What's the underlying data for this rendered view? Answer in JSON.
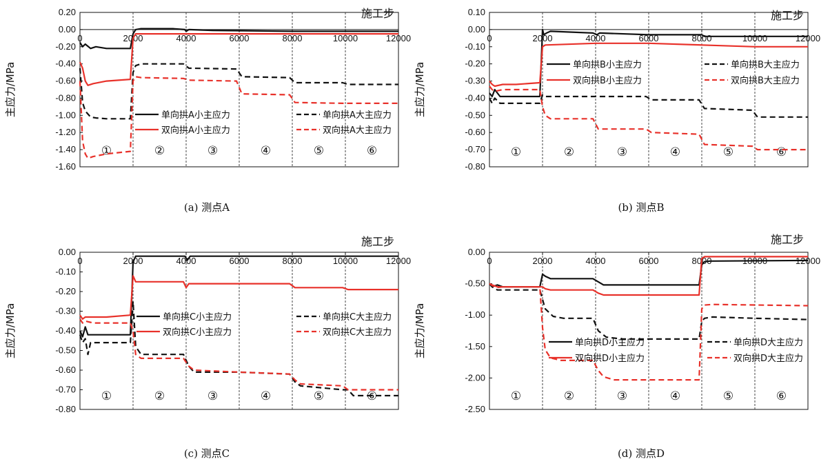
{
  "shared": {
    "xlabel": "施工步",
    "ylabel": "主应力/MPa",
    "colors": {
      "black": "#111111",
      "red": "#e8312a"
    },
    "stages": [
      "①",
      "②",
      "③",
      "④",
      "⑤",
      "⑥"
    ]
  },
  "chart_data": [
    {
      "type": "line",
      "title": "(a) 测点A",
      "xlabel": "施工步",
      "ylabel": "主应力/MPa",
      "xlim": [
        0,
        12000
      ],
      "ylim": [
        -1.6,
        0.2
      ],
      "xticks": [
        "0",
        "2000",
        "4000",
        "6000",
        "8000",
        "10000",
        "12000"
      ],
      "yticks": [
        "0.20",
        "0.00",
        "-0.20",
        "-0.40",
        "-0.60",
        "-0.80",
        "-1.00",
        "-1.20",
        "-1.40",
        "-1.60"
      ],
      "stage_boundaries": [
        2000,
        4000,
        6000,
        8000,
        10000
      ],
      "stages": [
        "①",
        "②",
        "③",
        "④",
        "⑤",
        "⑥"
      ],
      "legend": "center-right",
      "series": [
        {
          "name": "单向拱A小主应力",
          "color": "#111111",
          "dash": false,
          "x": [
            0,
            100,
            200,
            400,
            600,
            1000,
            1900,
            2000,
            2100,
            2300,
            3500,
            3950,
            4000,
            4100,
            5000,
            8000,
            12000
          ],
          "y": [
            -0.15,
            -0.2,
            -0.17,
            -0.22,
            -0.2,
            -0.22,
            -0.22,
            -0.05,
            0.0,
            0.01,
            0.01,
            0.0,
            -0.02,
            0.0,
            -0.01,
            -0.02,
            -0.02
          ]
        },
        {
          "name": "单向拱A大主应力",
          "color": "#111111",
          "dash": true,
          "x": [
            0,
            100,
            200,
            400,
            600,
            1000,
            1900,
            2000,
            2100,
            2300,
            3900,
            4100,
            5900,
            6100,
            7900,
            8100,
            9900,
            10100,
            12000
          ],
          "y": [
            -0.45,
            -0.85,
            -0.95,
            -1.02,
            -1.03,
            -1.04,
            -1.04,
            -0.5,
            -0.42,
            -0.4,
            -0.4,
            -0.45,
            -0.46,
            -0.55,
            -0.56,
            -0.62,
            -0.62,
            -0.64,
            -0.64
          ]
        },
        {
          "name": "双向拱A小主应力",
          "color": "#e8312a",
          "dash": false,
          "x": [
            0,
            100,
            200,
            300,
            500,
            1000,
            1900,
            2000,
            2100,
            12000
          ],
          "y": [
            -0.38,
            -0.45,
            -0.6,
            -0.65,
            -0.63,
            -0.6,
            -0.58,
            -0.1,
            -0.05,
            -0.05
          ]
        },
        {
          "name": "双向拱A大主应力",
          "color": "#e8312a",
          "dash": true,
          "x": [
            0,
            100,
            200,
            300,
            500,
            1000,
            1900,
            2000,
            2100,
            2300,
            3900,
            4100,
            5900,
            6100,
            7900,
            8100,
            9900,
            10100,
            12000
          ],
          "y": [
            -0.6,
            -1.3,
            -1.45,
            -1.5,
            -1.48,
            -1.45,
            -1.42,
            -0.6,
            -0.55,
            -0.56,
            -0.57,
            -0.59,
            -0.6,
            -0.75,
            -0.76,
            -0.85,
            -0.86,
            -0.86,
            -0.86
          ]
        }
      ]
    },
    {
      "type": "line",
      "title": "(b) 测点B",
      "xlabel": "施工步",
      "ylabel": "主应力/MPa",
      "xlim": [
        0,
        12000
      ],
      "ylim": [
        -0.8,
        0.1
      ],
      "xticks": [
        "0",
        "2000",
        "4000",
        "6000",
        "8000",
        "10000",
        "12000"
      ],
      "yticks": [
        "0.10",
        "0.00",
        "-0.10",
        "-0.20",
        "-0.30",
        "-0.40",
        "-0.50",
        "-0.60",
        "-0.70",
        "-0.80"
      ],
      "stage_boundaries": [
        2000,
        4000,
        6000,
        8000,
        10000
      ],
      "stages": [
        "①",
        "②",
        "③",
        "④",
        "⑤",
        "⑥"
      ],
      "legend": "top-right",
      "series": [
        {
          "name": "单向拱B小主应力",
          "color": "#111111",
          "dash": false,
          "x": [
            0,
            100,
            200,
            400,
            1000,
            1900,
            2000,
            2050,
            2150,
            2300,
            3900,
            4050,
            4150,
            6000,
            8000,
            8100,
            10000,
            12000
          ],
          "y": [
            -0.37,
            -0.39,
            -0.35,
            -0.39,
            -0.39,
            -0.39,
            0.0,
            -0.03,
            -0.02,
            -0.01,
            -0.02,
            -0.03,
            -0.02,
            -0.03,
            -0.03,
            -0.04,
            -0.04,
            -0.04
          ]
        },
        {
          "name": "单向拱B大主应力",
          "color": "#111111",
          "dash": true,
          "x": [
            0,
            100,
            200,
            400,
            1000,
            1900,
            2000,
            2100,
            3900,
            4100,
            5900,
            6100,
            7900,
            8100,
            9900,
            10100,
            12000
          ],
          "y": [
            -0.4,
            -0.43,
            -0.4,
            -0.43,
            -0.43,
            -0.43,
            -0.38,
            -0.39,
            -0.39,
            -0.39,
            -0.39,
            -0.41,
            -0.41,
            -0.46,
            -0.47,
            -0.51,
            -0.51
          ]
        },
        {
          "name": "双向拱B小主应力",
          "color": "#e8312a",
          "dash": false,
          "x": [
            0,
            100,
            200,
            500,
            1000,
            1900,
            2000,
            2100,
            4000,
            6000,
            8000,
            10000,
            12000
          ],
          "y": [
            -0.3,
            -0.32,
            -0.33,
            -0.32,
            -0.32,
            -0.31,
            -0.1,
            -0.09,
            -0.08,
            -0.08,
            -0.09,
            -0.1,
            -0.1
          ]
        },
        {
          "name": "双向拱B大主应力",
          "color": "#e8312a",
          "dash": true,
          "x": [
            0,
            100,
            200,
            500,
            1000,
            1900,
            2000,
            2100,
            2300,
            3900,
            4100,
            5900,
            6100,
            7900,
            8100,
            9900,
            10100,
            12000
          ],
          "y": [
            -0.33,
            -0.35,
            -0.36,
            -0.35,
            -0.35,
            -0.35,
            -0.45,
            -0.5,
            -0.52,
            -0.52,
            -0.58,
            -0.58,
            -0.6,
            -0.61,
            -0.67,
            -0.68,
            -0.7,
            -0.7
          ]
        }
      ]
    },
    {
      "type": "line",
      "title": "(c) 测点C",
      "xlabel": "施工步",
      "ylabel": "主应力/MPa",
      "xlim": [
        0,
        12000
      ],
      "ylim": [
        -0.8,
        0.0
      ],
      "xticks": [
        "0",
        "2000",
        "4000",
        "6000",
        "8000",
        "10000",
        "12000"
      ],
      "yticks": [
        "0.00",
        "-0.10",
        "-0.20",
        "-0.30",
        "-0.40",
        "-0.50",
        "-0.60",
        "-0.70",
        "-0.80"
      ],
      "stage_boundaries": [
        2000,
        4000,
        6000,
        8000,
        10000
      ],
      "stages": [
        "①",
        "②",
        "③",
        "④",
        "⑤",
        "⑥"
      ],
      "legend": "center-right",
      "series": [
        {
          "name": "单向拱C小主应力",
          "color": "#111111",
          "dash": false,
          "x": [
            0,
            100,
            200,
            300,
            500,
            1000,
            1900,
            2000,
            2100,
            2300,
            3950,
            4050,
            4150,
            6000,
            8000,
            12000
          ],
          "y": [
            -0.4,
            -0.43,
            -0.38,
            -0.42,
            -0.42,
            -0.42,
            -0.42,
            -0.05,
            -0.02,
            -0.02,
            -0.02,
            -0.04,
            -0.02,
            -0.02,
            -0.02,
            -0.02
          ]
        },
        {
          "name": "单向拱C大主应力",
          "color": "#111111",
          "dash": true,
          "x": [
            0,
            100,
            200,
            300,
            400,
            600,
            1000,
            1900,
            2000,
            2100,
            2300,
            3900,
            4100,
            4300,
            6000,
            7900,
            8100,
            8300,
            9900,
            10100,
            10300,
            12000
          ],
          "y": [
            -0.42,
            -0.46,
            -0.44,
            -0.52,
            -0.46,
            -0.46,
            -0.46,
            -0.46,
            -0.25,
            -0.48,
            -0.52,
            -0.52,
            -0.58,
            -0.61,
            -0.61,
            -0.62,
            -0.66,
            -0.68,
            -0.7,
            -0.7,
            -0.73,
            -0.73
          ]
        },
        {
          "name": "双向拱C小主应力",
          "color": "#e8312a",
          "dash": false,
          "x": [
            0,
            100,
            200,
            500,
            1000,
            1900,
            2000,
            2100,
            2300,
            3900,
            4000,
            4100,
            4200,
            6000,
            7900,
            8100,
            9900,
            10100,
            12000
          ],
          "y": [
            -0.32,
            -0.34,
            -0.33,
            -0.33,
            -0.33,
            -0.32,
            -0.12,
            -0.15,
            -0.15,
            -0.15,
            -0.18,
            -0.16,
            -0.16,
            -0.16,
            -0.16,
            -0.18,
            -0.18,
            -0.19,
            -0.19
          ]
        },
        {
          "name": "双向拱C大主应力",
          "color": "#e8312a",
          "dash": true,
          "x": [
            0,
            100,
            200,
            500,
            1000,
            1900,
            2000,
            2100,
            2300,
            3900,
            4100,
            4300,
            6000,
            7900,
            8100,
            8300,
            9900,
            10100,
            12000
          ],
          "y": [
            -0.34,
            -0.36,
            -0.35,
            -0.36,
            -0.36,
            -0.36,
            -0.4,
            -0.52,
            -0.54,
            -0.54,
            -0.58,
            -0.6,
            -0.61,
            -0.62,
            -0.65,
            -0.67,
            -0.68,
            -0.7,
            -0.7
          ]
        }
      ]
    },
    {
      "type": "line",
      "title": "(d) 测点D",
      "xlabel": "施工步",
      "ylabel": "主应力/MPa",
      "xlim": [
        0,
        12000
      ],
      "ylim": [
        -2.5,
        0.0
      ],
      "xticks": [
        "0",
        "2000",
        "4000",
        "6000",
        "8000",
        "10000",
        "12000"
      ],
      "yticks": [
        "0.00",
        "-0.50",
        "-1.00",
        "-1.50",
        "-2.00",
        "-2.50"
      ],
      "stage_boundaries": [
        2000,
        4000,
        6000,
        8000,
        10000
      ],
      "stages": [
        "①",
        "②",
        "③",
        "④",
        "⑤",
        "⑥"
      ],
      "legend": "center-right",
      "series": [
        {
          "name": "单向拱D小主应力",
          "color": "#111111",
          "dash": false,
          "x": [
            0,
            100,
            300,
            500,
            1000,
            1900,
            2000,
            2100,
            2300,
            3900,
            4100,
            4300,
            6000,
            7900,
            8000,
            8100,
            8300,
            12000
          ],
          "y": [
            -0.5,
            -0.55,
            -0.52,
            -0.55,
            -0.55,
            -0.55,
            -0.35,
            -0.38,
            -0.42,
            -0.42,
            -0.47,
            -0.52,
            -0.52,
            -0.52,
            -0.2,
            -0.15,
            -0.14,
            -0.13
          ]
        },
        {
          "name": "单向拱D大主应力",
          "color": "#111111",
          "dash": true,
          "x": [
            0,
            100,
            300,
            500,
            1000,
            1900,
            2000,
            2100,
            2400,
            2800,
            3900,
            4100,
            4400,
            5000,
            7900,
            8000,
            8100,
            8400,
            10000,
            12000
          ],
          "y": [
            -0.5,
            -0.55,
            -0.6,
            -0.6,
            -0.6,
            -0.6,
            -0.75,
            -0.9,
            -1.02,
            -1.05,
            -1.05,
            -1.25,
            -1.35,
            -1.38,
            -1.38,
            -1.1,
            -1.05,
            -1.03,
            -1.05,
            -1.07
          ]
        },
        {
          "name": "双向拱D小主应力",
          "color": "#e8312a",
          "dash": false,
          "x": [
            0,
            100,
            300,
            500,
            1000,
            1900,
            2000,
            2100,
            2300,
            3900,
            4100,
            4300,
            6000,
            7900,
            8000,
            8100,
            12000
          ],
          "y": [
            -0.5,
            -0.52,
            -0.55,
            -0.55,
            -0.55,
            -0.55,
            -0.55,
            -0.58,
            -0.6,
            -0.6,
            -0.65,
            -0.68,
            -0.68,
            -0.68,
            -0.1,
            -0.07,
            -0.07
          ]
        },
        {
          "name": "双向拱D大主应力",
          "color": "#e8312a",
          "dash": true,
          "x": [
            0,
            100,
            300,
            500,
            1000,
            1900,
            2000,
            2100,
            2300,
            2700,
            3900,
            4100,
            4300,
            4700,
            7900,
            8000,
            8100,
            8400,
            12000
          ],
          "y": [
            -0.5,
            -0.53,
            -0.56,
            -0.55,
            -0.55,
            -0.55,
            -1.2,
            -1.55,
            -1.68,
            -1.72,
            -1.72,
            -1.88,
            -1.98,
            -2.03,
            -2.03,
            -0.9,
            -0.84,
            -0.83,
            -0.85
          ]
        }
      ]
    }
  ]
}
